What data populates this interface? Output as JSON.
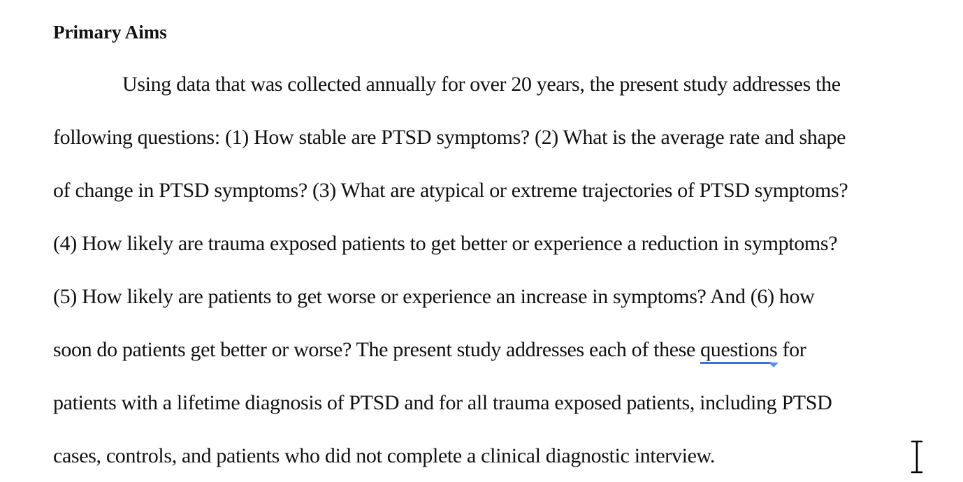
{
  "document": {
    "heading": "Primary Aims",
    "lines": [
      "Using data that was collected annually for over 20 years, the present study addresses the",
      "following questions: (1) How stable are PTSD symptoms? (2) What is the average rate and shape",
      "of change in PTSD symptoms? (3) What are atypical or extreme trajectories of PTSD symptoms?",
      "(4) How likely are trauma exposed patients to get better or experience a reduction in symptoms?",
      "(5) How likely are patients to get worse or experience an increase in symptoms? And (6) how",
      "soon do patients get better or worse? The present study addresses each of these ",
      "patients with a lifetime diagnosis of PTSD and for all trauma exposed patients, including PTSD",
      "cases, controls, and patients who did not complete a clinical diagnostic interview."
    ],
    "flagged_word": "questions",
    "line6_tail": " for"
  },
  "colors": {
    "text": "#111111",
    "grammar_flag": "#3d6fd8"
  },
  "icons": {
    "cursor": "ibeam-cursor-icon",
    "grammar": "grammar-suggestion-icon"
  }
}
